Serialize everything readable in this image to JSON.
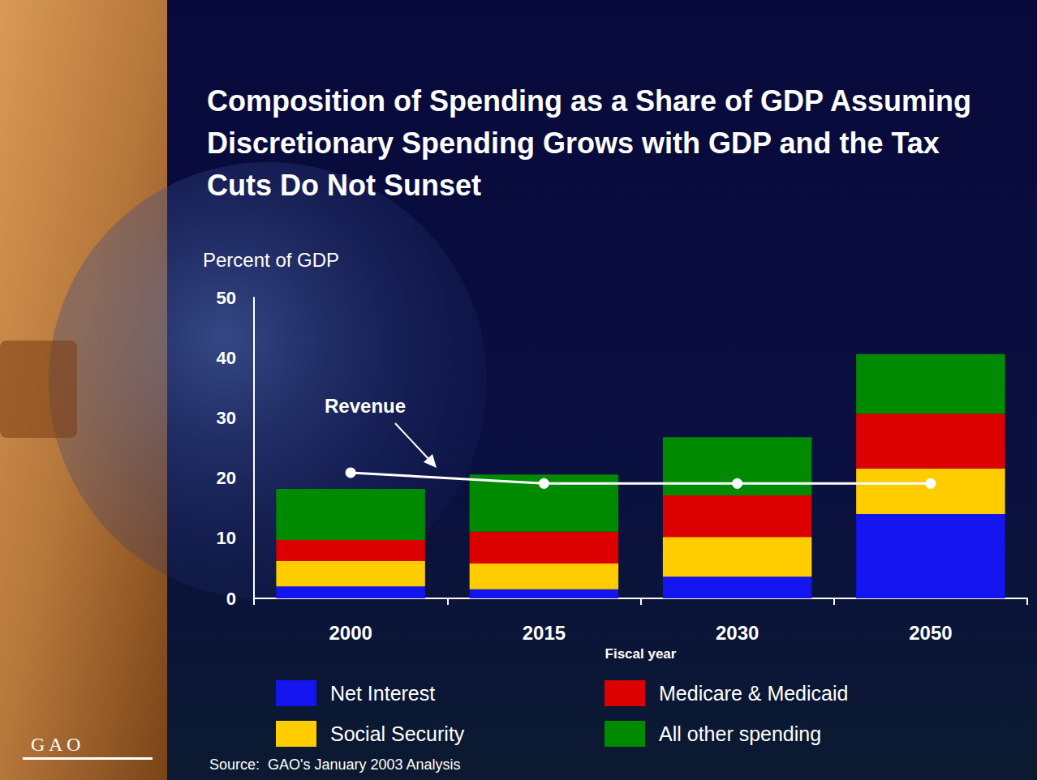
{
  "chart_data": {
    "type": "bar",
    "stacked": true,
    "title": "Composition of Spending as a Share of GDP Assuming Discretionary Spending Grows with GDP and the Tax Cuts Do Not Sunset",
    "y_label": "Percent of GDP",
    "x_label": "Fiscal year",
    "categories": [
      "2000",
      "2015",
      "2030",
      "2050"
    ],
    "series": [
      {
        "name": "Net Interest",
        "color": "#1414ee",
        "values": [
          2.0,
          1.5,
          3.6,
          14.0
        ]
      },
      {
        "name": "Social Security",
        "color": "#ffcc00",
        "values": [
          4.2,
          4.3,
          6.6,
          7.6
        ]
      },
      {
        "name": "Medicare & Medicaid",
        "color": "#dd0000",
        "values": [
          3.5,
          5.3,
          6.9,
          9.1
        ]
      },
      {
        "name": "All other spending",
        "color": "#008a00",
        "values": [
          8.5,
          9.5,
          9.7,
          9.9
        ]
      },
      {
        "name": "Revenue",
        "type": "line",
        "color": "#ffffff",
        "marker": "circle",
        "values": [
          20.9,
          19.1,
          19.1,
          19.1
        ]
      }
    ],
    "ylim": [
      0,
      50
    ],
    "yticks": [
      0,
      10,
      20,
      30,
      40,
      50
    ],
    "grid": false,
    "legend": "bottom",
    "source": "Source:  GAO's January 2003 Analysis",
    "logo": "G A O"
  }
}
